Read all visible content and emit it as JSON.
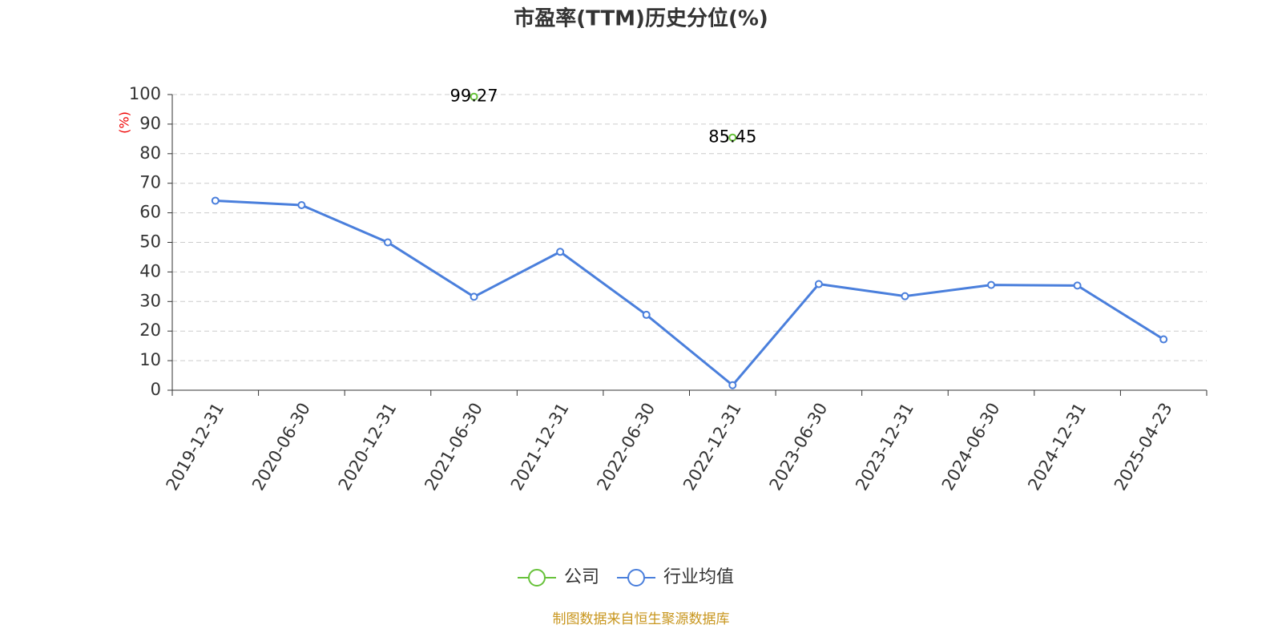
{
  "chart_data": {
    "type": "line",
    "title": "市盈率(TTM)历史分位(%)",
    "y_label": "(%)",
    "categories": [
      "2019-12-31",
      "2020-06-30",
      "2020-12-31",
      "2021-06-30",
      "2021-12-31",
      "2022-06-30",
      "2022-12-31",
      "2023-06-30",
      "2023-12-31",
      "2024-06-30",
      "2024-12-31",
      "2025-04-23"
    ],
    "series": [
      {
        "name": "公司",
        "color": "#67c23a",
        "show_labels": true,
        "values": [
          null,
          null,
          null,
          99.27,
          null,
          null,
          85.45,
          null,
          null,
          null,
          null,
          null
        ]
      },
      {
        "name": "行业均值",
        "color": "#4a7fdc",
        "show_labels": false,
        "values": [
          64.1,
          62.6,
          50,
          31.6,
          46.8,
          25.5,
          1.7,
          35.9,
          31.8,
          35.6,
          35.4,
          17.2
        ]
      }
    ],
    "ylim": [
      0,
      100
    ],
    "yticks": [
      0,
      10,
      20,
      30,
      40,
      50,
      60,
      70,
      80,
      90,
      100
    ],
    "grid": true,
    "legend": "bottom",
    "source": "制图数据来自恒生聚源数据库"
  }
}
